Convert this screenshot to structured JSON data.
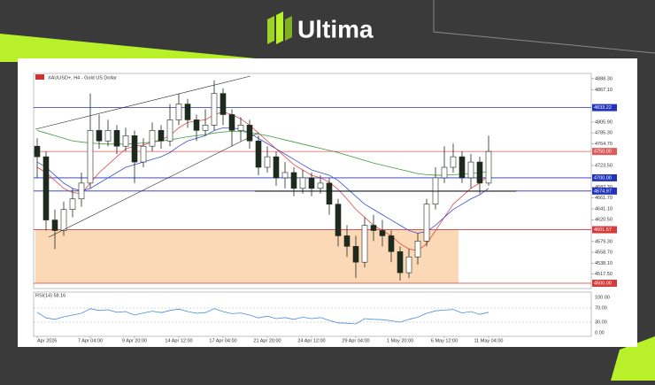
{
  "header": {
    "brand": "Ultima"
  },
  "chart_data": {
    "type": "candlestick",
    "title": "XAUUSD+, H4 - Gold US Dollar",
    "categories": [
      "Apr 2026",
      null,
      null,
      null,
      null,
      null,
      "7 Apr 04:00",
      null,
      null,
      null,
      null,
      "9 Apr 20:00",
      null,
      null,
      null,
      null,
      "14 Apr 12:00",
      null,
      null,
      null,
      null,
      "17 Apr 04:00",
      null,
      null,
      null,
      null,
      "21 Apr 20:00",
      null,
      null,
      null,
      null,
      "24 Apr 12:00",
      null,
      null,
      null,
      null,
      "29 Apr 04:00",
      null,
      null,
      null,
      null,
      "1 May 20:00",
      null,
      null,
      null,
      null,
      "6 May 12:00",
      null,
      null,
      null,
      null,
      "11 May 04:00"
    ],
    "open": [
      4760,
      4740,
      4620,
      4600,
      4640,
      4660,
      4690,
      4790,
      4770,
      4790,
      4760,
      4780,
      4730,
      4760,
      4790,
      4770,
      4810,
      4840,
      4810,
      4790,
      4800,
      4860,
      4820,
      4790,
      4800,
      4770,
      4720,
      4740,
      4700,
      4710,
      4680,
      4700,
      4680,
      4690,
      4650,
      4590,
      4570,
      4540,
      4610,
      4600,
      4590,
      4560,
      4520,
      4550,
      4580,
      4650,
      4700,
      4720,
      4740,
      4700,
      4730,
      4690
    ],
    "high": [
      4775,
      4750,
      4640,
      4655,
      4680,
      4710,
      4860,
      4820,
      4810,
      4800,
      4795,
      4790,
      4775,
      4805,
      4800,
      4840,
      4860,
      4850,
      4820,
      4830,
      4885,
      4870,
      4830,
      4815,
      4810,
      4780,
      4760,
      4750,
      4730,
      4720,
      4715,
      4710,
      4705,
      4700,
      4660,
      4610,
      4590,
      4625,
      4630,
      4620,
      4600,
      4570,
      4565,
      4595,
      4660,
      4720,
      4760,
      4765,
      4750,
      4745,
      4740,
      4780
    ],
    "low": [
      4700,
      4600,
      4565,
      4590,
      4625,
      4645,
      4680,
      4755,
      4760,
      4745,
      4750,
      4690,
      4720,
      4750,
      4755,
      4760,
      4800,
      4795,
      4770,
      4780,
      4790,
      4800,
      4760,
      4770,
      4755,
      4705,
      4710,
      4685,
      4680,
      4665,
      4670,
      4665,
      4670,
      4630,
      4570,
      4550,
      4510,
      4530,
      4580,
      4570,
      4540,
      4505,
      4510,
      4535,
      4570,
      4640,
      4690,
      4710,
      4690,
      4680,
      4670,
      4685
    ],
    "close": [
      4740,
      4620,
      4600,
      4640,
      4660,
      4690,
      4790,
      4770,
      4790,
      4760,
      4780,
      4730,
      4760,
      4790,
      4770,
      4810,
      4840,
      4810,
      4790,
      4800,
      4860,
      4820,
      4790,
      4800,
      4770,
      4720,
      4740,
      4700,
      4710,
      4680,
      4700,
      4680,
      4690,
      4650,
      4590,
      4570,
      4540,
      4610,
      4600,
      4590,
      4560,
      4520,
      4550,
      4580,
      4650,
      4700,
      4720,
      4740,
      4700,
      4730,
      4690,
      4750
    ],
    "candle_color": "#1f2a1f",
    "ylim": [
      4495,
      4893
    ],
    "yticks": [
      {
        "value": 4888.3,
        "label": "4888.30"
      },
      {
        "value": 4867.1,
        "label": "4867.10"
      },
      {
        "value": 4805.9,
        "label": "4805.90"
      },
      {
        "value": 4785.3,
        "label": "4785.30"
      },
      {
        "value": 4764.7,
        "label": "4764.70"
      },
      {
        "value": 4723.5,
        "label": "4723.50"
      },
      {
        "value": 4682.3,
        "label": "4682.30"
      },
      {
        "value": 4661.7,
        "label": "4661.70"
      },
      {
        "value": 4641.1,
        "label": "4641.10"
      },
      {
        "value": 4620.5,
        "label": "4620.50"
      },
      {
        "value": 4579.3,
        "label": "4579.30"
      },
      {
        "value": 4558.7,
        "label": "4558.70"
      },
      {
        "value": 4538.1,
        "label": "4538.10"
      },
      {
        "value": 4517.5,
        "label": "4517.50"
      }
    ],
    "levels": [
      {
        "value": 4833.22,
        "label": "4833.22",
        "color": "#2233bb"
      },
      {
        "value": 4750,
        "label": "4750.00",
        "color": "#e05a5a"
      },
      {
        "value": 4700,
        "label": "4700.00",
        "color": "#2233bb"
      },
      {
        "value": 4674.97,
        "label": "4674.97",
        "color": "#2233bb"
      },
      {
        "value": 4601.57,
        "label": "4601.57",
        "color": "#d63a3a"
      },
      {
        "value": 4500,
        "label": "4500.00",
        "color": "#d63a3a"
      }
    ],
    "zone_color": "#fcd9b6",
    "moving_averages": [
      {
        "color": "#e0474c",
        "values": [
          4720,
          4710,
          4695,
          4680,
          4672,
          4670,
          4690,
          4710,
          4725,
          4740,
          4755,
          4760,
          4762,
          4768,
          4772,
          4780,
          4795,
          4805,
          4808,
          4810,
          4820,
          4825,
          4820,
          4812,
          4800,
          4785,
          4770,
          4755,
          4740,
          4725,
          4715,
          4705,
          4700,
          4692,
          4678,
          4660,
          4640,
          4625,
          4610,
          4600,
          4590,
          4575,
          4565,
          4562,
          4575,
          4600,
          4625,
          4650,
          4665,
          4680,
          4690,
          4705
        ]
      },
      {
        "color": "#3a4fd0",
        "values": [
          4730,
          4720,
          4705,
          4690,
          4680,
          4675,
          4680,
          4690,
          4700,
          4710,
          4720,
          4725,
          4730,
          4735,
          4740,
          4748,
          4760,
          4770,
          4775,
          4780,
          4790,
          4795,
          4795,
          4792,
          4785,
          4775,
          4765,
          4755,
          4745,
          4735,
          4725,
          4715,
          4710,
          4705,
          4695,
          4680,
          4665,
          4650,
          4640,
          4630,
          4620,
          4610,
          4600,
          4595,
          4598,
          4610,
          4625,
          4640,
          4650,
          4660,
          4668,
          4680
        ]
      },
      {
        "color": "#3f9a3f",
        "values": [
          4790,
          4785,
          4780,
          4775,
          4770,
          4768,
          4766,
          4765,
          4764,
          4764,
          4764,
          4765,
          4766,
          4768,
          4770,
          4772,
          4775,
          4778,
          4780,
          4782,
          4785,
          4787,
          4788,
          4788,
          4786,
          4783,
          4780,
          4776,
          4772,
          4768,
          4764,
          4760,
          4756,
          4752,
          4748,
          4743,
          4738,
          4733,
          4728,
          4724,
          4720,
          4716,
          4712,
          4708,
          4706,
          4705,
          4705,
          4706,
          4707,
          4708,
          4710,
          4712
        ]
      }
    ],
    "rsi": {
      "label": "RSI(14) 58.16",
      "color": "#4a8fd8",
      "values": [
        58,
        42,
        38,
        45,
        50,
        55,
        68,
        63,
        65,
        58,
        60,
        50,
        56,
        61,
        57,
        63,
        67,
        60,
        55,
        57,
        68,
        60,
        54,
        56,
        50,
        42,
        47,
        40,
        43,
        38,
        44,
        40,
        43,
        35,
        28,
        27,
        25,
        40,
        38,
        37,
        34,
        30,
        38,
        44,
        55,
        62,
        64,
        66,
        56,
        60,
        52,
        58
      ],
      "ylim": [
        0,
        100
      ],
      "yticks": [
        {
          "value": 100,
          "label": "100.00"
        },
        {
          "value": 70,
          "label": "70.00"
        },
        {
          "value": 30,
          "label": "30.00"
        },
        {
          "value": 0,
          "label": "0.00"
        }
      ]
    }
  }
}
